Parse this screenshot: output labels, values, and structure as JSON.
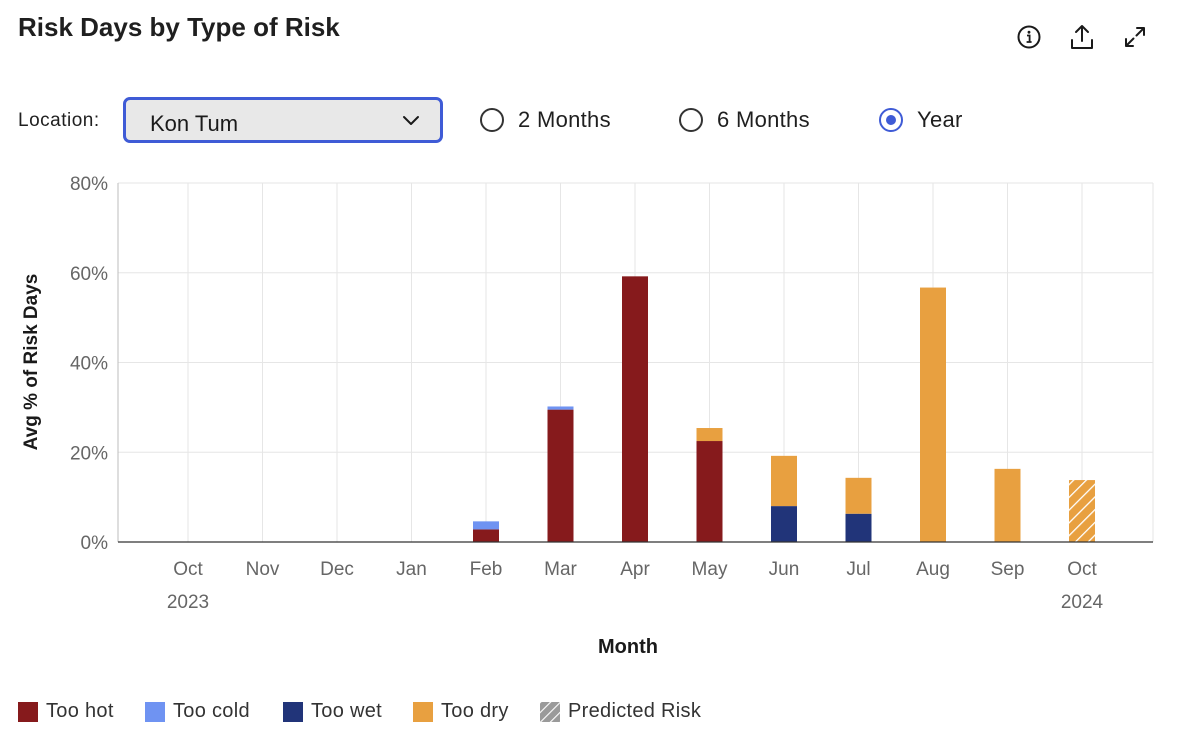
{
  "header": {
    "title": "Risk Days by Type of Risk",
    "icons": [
      "info-icon",
      "export-icon",
      "expand-icon"
    ]
  },
  "controls": {
    "location_label": "Location:",
    "location_value": "Kon Tum",
    "ranges": [
      {
        "label": "2 Months",
        "selected": false
      },
      {
        "label": "6 Months",
        "selected": false
      },
      {
        "label": "Year",
        "selected": true
      }
    ]
  },
  "colors": {
    "too_hot": "#861a1c",
    "too_cold": "#6f93f2",
    "too_wet": "#213479",
    "too_dry": "#e8a040",
    "accent": "#3f5bd6"
  },
  "chart_data": {
    "type": "bar",
    "stacked": true,
    "title": "",
    "xlabel": "Month",
    "ylabel": "Avg % of Risk Days",
    "ylim": [
      0,
      80
    ],
    "yticks": [
      "0%",
      "20%",
      "40%",
      "60%",
      "80%"
    ],
    "categories": [
      "Oct",
      "Nov",
      "Dec",
      "Jan",
      "Feb",
      "Mar",
      "Apr",
      "May",
      "Jun",
      "Jul",
      "Aug",
      "Sep",
      "Oct"
    ],
    "year_labels": [
      {
        "index": 0,
        "label": "2023"
      },
      {
        "index": 12,
        "label": "2024"
      }
    ],
    "grid": true,
    "series": [
      {
        "name": "Too wet",
        "color": "#213479",
        "values": [
          0,
          0,
          0,
          0,
          0,
          0,
          0,
          0,
          8,
          6.3,
          0,
          0,
          0
        ]
      },
      {
        "name": "Too hot",
        "color": "#861a1c",
        "values": [
          0,
          0,
          0,
          0,
          2.8,
          29.5,
          59.2,
          22.5,
          0,
          0,
          0,
          0,
          0
        ]
      },
      {
        "name": "Too dry",
        "color": "#e8a040",
        "values": [
          0,
          0,
          0,
          0,
          0,
          0,
          0,
          2.9,
          11.2,
          8,
          56.7,
          16.3,
          13.8
        ]
      },
      {
        "name": "Too cold",
        "color": "#6f93f2",
        "values": [
          0,
          0,
          0,
          0,
          1.8,
          0.7,
          0,
          0,
          0,
          0,
          0,
          0,
          0
        ]
      }
    ],
    "predicted_indices": [
      12
    ],
    "legend": {
      "position": "bottom-left",
      "items": [
        {
          "label": "Too hot",
          "color": "#861a1c"
        },
        {
          "label": "Too cold",
          "color": "#6f93f2"
        },
        {
          "label": "Too wet",
          "color": "#213479"
        },
        {
          "label": "Too dry",
          "color": "#e8a040"
        },
        {
          "label": "Predicted Risk",
          "pattern": "hatched"
        }
      ]
    }
  }
}
